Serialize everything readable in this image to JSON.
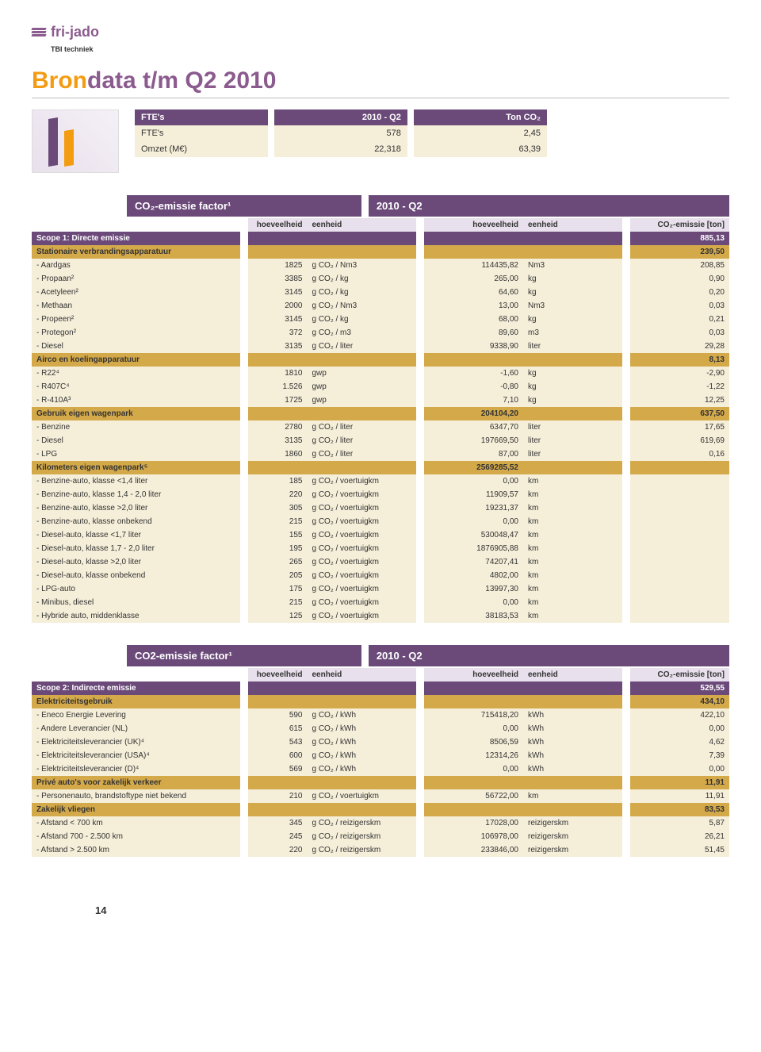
{
  "logo": {
    "brand": "fri-jado",
    "sub": "TBI techniek"
  },
  "title": {
    "a": "Bron",
    "b": "data t/m Q2 2010"
  },
  "ftetable": {
    "h1": "FTE's",
    "h2": "2010 - Q2",
    "h3": "Ton CO₂",
    "rows": [
      {
        "l": "FTE's",
        "v1": "578",
        "v2": "2,45"
      },
      {
        "l": "Omzet (M€)",
        "v1": "22,318",
        "v2": "63,39"
      }
    ]
  },
  "t1": {
    "header": {
      "left": "CO₂-emissie factor¹",
      "right": "2010 - Q2"
    },
    "cols": {
      "c1": "hoeveelheid",
      "c2": "eenheid",
      "c3": "hoeveelheid",
      "c4": "eenheid",
      "c5": "CO₂-emissie [ton]"
    },
    "rows": [
      {
        "type": "dark",
        "l": "Scope 1: Directe emissie",
        "v5": "885,13"
      },
      {
        "type": "gold",
        "l": "Stationaire verbrandingsapparatuur",
        "v5": "239,50"
      },
      {
        "type": "cream",
        "l": "- Aardgas",
        "v1": "1825",
        "v2": "g CO₂ / Nm3",
        "v3": "114435,82",
        "v4": "Nm3",
        "v5": "208,85"
      },
      {
        "type": "cream",
        "l": "- Propaan²",
        "v1": "3385",
        "v2": "g CO₂ / kg",
        "v3": "265,00",
        "v4": "kg",
        "v5": "0,90"
      },
      {
        "type": "cream",
        "l": "- Acetyleen²",
        "v1": "3145",
        "v2": "g CO₂ / kg",
        "v3": "64,60",
        "v4": "kg",
        "v5": "0,20"
      },
      {
        "type": "cream",
        "l": "- Methaan",
        "v1": "2000",
        "v2": "g CO₂ / Nm3",
        "v3": "13,00",
        "v4": "Nm3",
        "v5": "0,03"
      },
      {
        "type": "cream",
        "l": "- Propeen²",
        "v1": "3145",
        "v2": "g CO₂ / kg",
        "v3": "68,00",
        "v4": "kg",
        "v5": "0,21"
      },
      {
        "type": "cream",
        "l": "- Protegon²",
        "v1": "372",
        "v2": "g CO₂ / m3",
        "v3": "89,60",
        "v4": "m3",
        "v5": "0,03"
      },
      {
        "type": "cream",
        "l": "- Diesel",
        "v1": "3135",
        "v2": "g CO₂ / liter",
        "v3": "9338,90",
        "v4": "liter",
        "v5": "29,28"
      },
      {
        "type": "gold",
        "l": "Airco en koelingapparatuur",
        "v5": "8,13"
      },
      {
        "type": "cream",
        "l": "- R22⁴",
        "v1": "1810",
        "v2": "gwp",
        "v3": "-1,60",
        "v4": "kg",
        "v5": "-2,90"
      },
      {
        "type": "cream",
        "l": "- R407C⁴",
        "v1": "1.526",
        "v2": "gwp",
        "v3": "-0,80",
        "v4": "kg",
        "v5": "-1,22"
      },
      {
        "type": "cream",
        "l": "- R-410A³",
        "v1": "1725",
        "v2": "gwp",
        "v3": "7,10",
        "v4": "kg",
        "v5": "12,25"
      },
      {
        "type": "gold",
        "l": "Gebruik eigen wagenpark",
        "v3": "204104,20",
        "v5": "637,50"
      },
      {
        "type": "cream",
        "l": "- Benzine",
        "v1": "2780",
        "v2": "g CO₂ / liter",
        "v3": "6347,70",
        "v4": "liter",
        "v5": "17,65"
      },
      {
        "type": "cream",
        "l": "- Diesel",
        "v1": "3135",
        "v2": "g CO₂ / liter",
        "v3": "197669,50",
        "v4": "liter",
        "v5": "619,69"
      },
      {
        "type": "cream",
        "l": "- LPG",
        "v1": "1860",
        "v2": "g CO₂ / liter",
        "v3": "87,00",
        "v4": "liter",
        "v5": "0,16"
      },
      {
        "type": "gold",
        "l": "Kilometers eigen wagenpark⁵",
        "v3": "2569285,52"
      },
      {
        "type": "cream",
        "l": "- Benzine-auto, klasse <1,4 liter",
        "v1": "185",
        "v2": "g CO₂ / voertuigkm",
        "v3": "0,00",
        "v4": "km"
      },
      {
        "type": "cream",
        "l": "- Benzine-auto, klasse 1,4 - 2,0 liter",
        "v1": "220",
        "v2": "g CO₂ / voertuigkm",
        "v3": "11909,57",
        "v4": "km"
      },
      {
        "type": "cream",
        "l": "- Benzine-auto, klasse >2,0 liter",
        "v1": "305",
        "v2": "g CO₂ / voertuigkm",
        "v3": "19231,37",
        "v4": "km"
      },
      {
        "type": "cream",
        "l": "- Benzine-auto, klasse onbekend",
        "v1": "215",
        "v2": "g CO₂ / voertuigkm",
        "v3": "0,00",
        "v4": "km"
      },
      {
        "type": "cream",
        "l": "- Diesel-auto, klasse <1,7 liter",
        "v1": "155",
        "v2": "g CO₂ / voertuigkm",
        "v3": "530048,47",
        "v4": "km"
      },
      {
        "type": "cream",
        "l": "- Diesel-auto, klasse 1,7 - 2,0 liter",
        "v1": "195",
        "v2": "g CO₂ / voertuigkm",
        "v3": "1876905,88",
        "v4": "km"
      },
      {
        "type": "cream",
        "l": "- Diesel-auto, klasse >2,0 liter",
        "v1": "265",
        "v2": "g CO₂ / voertuigkm",
        "v3": "74207,41",
        "v4": "km"
      },
      {
        "type": "cream",
        "l": "- Diesel-auto, klasse onbekend",
        "v1": "205",
        "v2": "g CO₂ / voertuigkm",
        "v3": "4802,00",
        "v4": "km"
      },
      {
        "type": "cream",
        "l": "- LPG-auto",
        "v1": "175",
        "v2": "g CO₂ / voertuigkm",
        "v3": "13997,30",
        "v4": "km"
      },
      {
        "type": "cream",
        "l": "- Minibus, diesel",
        "v1": "215",
        "v2": "g CO₂ / voertuigkm",
        "v3": "0,00",
        "v4": "km"
      },
      {
        "type": "cream",
        "l": "- Hybride auto, middenklasse",
        "v1": "125",
        "v2": "g CO₂ / voertuigkm",
        "v3": "38183,53",
        "v4": "km"
      }
    ]
  },
  "t2": {
    "header": {
      "left": "CO2-emissie factor¹",
      "right": "2010 - Q2"
    },
    "cols": {
      "c1": "hoeveelheid",
      "c2": "eenheid",
      "c3": "hoeveelheid",
      "c4": "eenheid",
      "c5": "CO₂-emissie [ton]"
    },
    "rows": [
      {
        "type": "dark",
        "l": "Scope 2:  Indirecte emissie",
        "v5": "529,55"
      },
      {
        "type": "gold",
        "l": "Elektriciteitsgebruik",
        "v5": "434,10"
      },
      {
        "type": "cream",
        "l": "- Eneco Energie Levering",
        "v1": "590",
        "v2": "g CO₂ / kWh",
        "v3": "715418,20",
        "v4": "kWh",
        "v5": "422,10"
      },
      {
        "type": "cream",
        "l": "- Andere Leverancier (NL)",
        "v1": "615",
        "v2": "g CO₂ / kWh",
        "v3": "0,00",
        "v4": "kWh",
        "v5": "0,00"
      },
      {
        "type": "cream",
        "l": "- Elektriciteitsleverancier (UK)⁴",
        "v1": "543",
        "v2": "g CO₂ / kWh",
        "v3": "8506,59",
        "v4": "kWh",
        "v5": "4,62"
      },
      {
        "type": "cream",
        "l": "- Elektriciteitsleverancier (USA)⁴",
        "v1": "600",
        "v2": "g CO₂ / kWh",
        "v3": "12314,26",
        "v4": "kWh",
        "v5": "7,39"
      },
      {
        "type": "cream",
        "l": "- Elektriciteitsleverancier (D)⁴",
        "v1": "569",
        "v2": "g CO₂ / kWh",
        "v3": "0,00",
        "v4": "kWh",
        "v5": "0,00"
      },
      {
        "type": "gold",
        "l": "Privé auto's voor zakelijk verkeer",
        "v5": "11,91"
      },
      {
        "type": "cream",
        "l": "- Personenauto, brandstoftype niet bekend",
        "v1": "210",
        "v2": "g CO₂ / voertuigkm",
        "v3": "56722,00",
        "v4": "km",
        "v5": "11,91"
      },
      {
        "type": "gold",
        "l": "Zakelijk vliegen",
        "v5": "83,53"
      },
      {
        "type": "cream",
        "l": "- Afstand < 700 km",
        "v1": "345",
        "v2": "g CO₂ / reizigerskm",
        "v3": "17028,00",
        "v4": "reizigerskm",
        "v5": "5,87"
      },
      {
        "type": "cream",
        "l": "- Afstand 700 - 2.500 km",
        "v1": "245",
        "v2": "g CO₂ / reizigerskm",
        "v3": "106978,00",
        "v4": "reizigerskm",
        "v5": "26,21"
      },
      {
        "type": "cream",
        "l": "- Afstand > 2.500 km",
        "v1": "220",
        "v2": "g CO₂ / reizigerskm",
        "v3": "233846,00",
        "v4": "reizigerskm",
        "v5": "51,45"
      }
    ]
  },
  "pagenum": "14"
}
